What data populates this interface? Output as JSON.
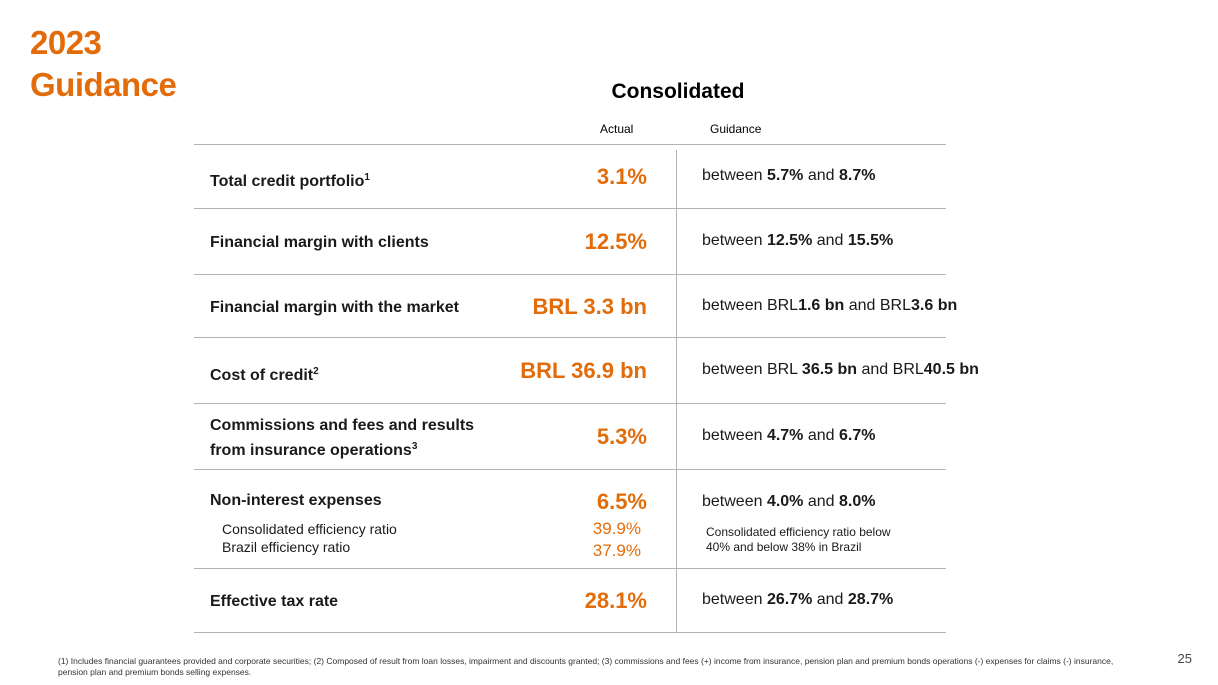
{
  "header": {
    "title_line1": "2023",
    "title_line2": "Guidance"
  },
  "table": {
    "title": "Consolidated",
    "col_actual": "Actual",
    "col_guidance": "Guidance",
    "rows": [
      {
        "label": "Total credit portfolio",
        "footnote_mark": "1",
        "actual": "3.1%",
        "g_prefix": "between ",
        "g_low": "5.7%",
        "g_mid": " and ",
        "g_high": "8.7%"
      },
      {
        "label": "Financial margin with clients",
        "actual": "12.5%",
        "g_prefix": "between ",
        "g_low": "12.5%",
        "g_mid": " and ",
        "g_high": "15.5%"
      },
      {
        "label": "Financial margin with the market",
        "actual": "BRL 3.3 bn",
        "g_prefix": "between BRL",
        "g_low": "1.6 bn",
        "g_mid": " and BRL",
        "g_high": "3.6 bn"
      },
      {
        "label": "Cost of credit",
        "footnote_mark": "2",
        "actual": "BRL 36.9 bn",
        "g_prefix": "between BRL ",
        "g_low": "36.5 bn",
        "g_mid": " and BRL",
        "g_high": "40.5 bn"
      },
      {
        "label_line1": "Commissions and fees and results",
        "label_line2": "from insurance operations",
        "footnote_mark": "3",
        "actual": "5.3%",
        "g_prefix": "between ",
        "g_low": "4.7%",
        "g_mid": " and ",
        "g_high": "6.7%"
      },
      {
        "label": "Non-interest expenses",
        "actual": "6.5%",
        "g_prefix": "between ",
        "g_low": "4.0%",
        "g_mid": " and ",
        "g_high": "8.0%",
        "sub_label_1": "Consolidated efficiency ratio",
        "sub_actual_1": "39.9%",
        "sub_label_2": "Brazil efficiency ratio",
        "sub_actual_2": "37.9%",
        "sub_note_line1": "Consolidated efficiency ratio below",
        "sub_note_line2": "40% and below 38% in Brazil"
      },
      {
        "label": "Effective tax rate",
        "actual": "28.1%",
        "g_prefix": "between ",
        "g_low": "26.7%",
        "g_mid": " and ",
        "g_high": "28.7%"
      }
    ]
  },
  "footnote": "(1) Includes financial guarantees provided and corporate securities; (2) Composed of result from loan losses, impairment and discounts granted; (3) commissions and fees (+) income from insurance, pension plan and premium bonds operations (-) expenses for claims (-) insurance, pension plan and premium bonds selling expenses.",
  "page_number": "25",
  "colors": {
    "accent": "#e36c0a",
    "rule": "#b3b3b3"
  }
}
